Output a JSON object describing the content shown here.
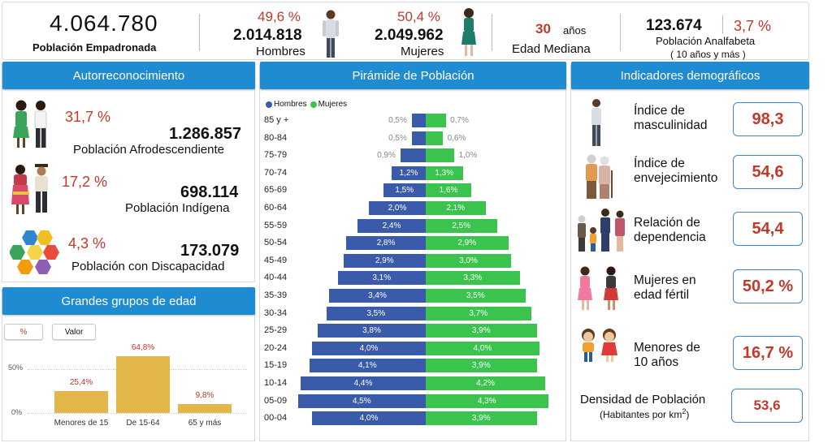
{
  "summary": {
    "total_value": "4.064.780",
    "total_label": "Población Empadronada",
    "men_pct": "49,6 %",
    "men_value": "2.014.818",
    "men_label": "Hombres",
    "women_pct": "50,4 %",
    "women_value": "2.049.962",
    "women_label": "Mujeres",
    "median_age_value": "30",
    "median_age_unit": "años",
    "median_age_label": "Edad Mediana",
    "illiterate_value": "123.674",
    "illiterate_pct": "3,7 %",
    "illiterate_label": "Población Analfabeta",
    "illiterate_sub": "( 10 años y más )"
  },
  "autorreconocimiento": {
    "title": "Autorreconocimiento",
    "items": [
      {
        "pct": "31,7 %",
        "value": "1.286.857",
        "label": "Población Afrodescendiente"
      },
      {
        "pct": "17,2 %",
        "value": "698.114",
        "label": "Población Indígena"
      },
      {
        "pct": "4,3 %",
        "value": "173.079",
        "label": "Población con Discapacidad"
      }
    ]
  },
  "age_groups": {
    "title": "Grandes grupos de edad",
    "toggle_pct": "%",
    "toggle_value": "Valor",
    "ytick_50": "50%",
    "ytick_0": "0%"
  },
  "pyramid": {
    "title": "Pirámide de Población",
    "legend_men": "Hombres",
    "legend_women": "Mujeres"
  },
  "indicators": {
    "title": "Indicadores demográficos",
    "items": [
      {
        "label_1": "Índice de",
        "label_2": "masculinidad",
        "value": "98,3"
      },
      {
        "label_1": "Índice de",
        "label_2": "envejecimiento",
        "value": "54,6"
      },
      {
        "label_1": "Relación de",
        "label_2": "dependencia",
        "value": "54,4"
      },
      {
        "label_1": "Mujeres en",
        "label_2": "edad fértil",
        "value": "50,2 %"
      },
      {
        "label_1": "Menores de",
        "label_2": "10 años",
        "value": "16,7 %"
      }
    ],
    "density_label": "Densidad de Población",
    "density_sub": "(Habitantes por km",
    "density_sup": "2",
    "density_close": ")",
    "density_value": "53,6"
  },
  "colors": {
    "men": "#3a5aaa",
    "women": "#3ac44e",
    "header": "#1f8bd1",
    "gold": "#e3b649",
    "accent_red": "#c0392b"
  },
  "chart_data": [
    {
      "type": "bar",
      "title": "Grandes grupos de edad",
      "categories": [
        "Menores de 15",
        "De 15-64",
        "65 y más"
      ],
      "values": [
        25.4,
        64.8,
        9.8
      ],
      "labels": [
        "25,4%",
        "64,8%",
        "9,8%"
      ],
      "ylim": [
        0,
        70
      ],
      "yticks": [
        "0%",
        "50%"
      ]
    },
    {
      "type": "bar",
      "title": "Pirámide de Población",
      "categories": [
        "85 y +",
        "80-84",
        "75-79",
        "70-74",
        "65-69",
        "60-64",
        "55-59",
        "50-54",
        "45-49",
        "40-44",
        "35-39",
        "30-34",
        "25-29",
        "20-24",
        "15-19",
        "10-14",
        "05-09",
        "00-04"
      ],
      "series": [
        {
          "name": "Hombres",
          "values": [
            0.5,
            0.5,
            0.9,
            1.2,
            1.5,
            2.0,
            2.4,
            2.8,
            2.9,
            3.1,
            3.4,
            3.5,
            3.8,
            4.0,
            4.1,
            4.4,
            4.5,
            4.0
          ],
          "labels": [
            "0,5%",
            "0,5%",
            "0,9%",
            "1,2%",
            "1,5%",
            "2,0%",
            "2,4%",
            "2,8%",
            "2,9%",
            "3,1%",
            "3,4%",
            "3,5%",
            "3,8%",
            "4,0%",
            "4,1%",
            "4,4%",
            "4,5%",
            "4,0%"
          ]
        },
        {
          "name": "Mujeres",
          "values": [
            0.7,
            0.6,
            1.0,
            1.3,
            1.6,
            2.1,
            2.5,
            2.9,
            3.0,
            3.3,
            3.5,
            3.7,
            3.9,
            4.0,
            3.9,
            4.2,
            4.3,
            3.9
          ],
          "labels": [
            "0,7%",
            "0,6%",
            "1,0%",
            "1,3%",
            "1,6%",
            "2,1%",
            "2,5%",
            "2,9%",
            "3,0%",
            "3,3%",
            "3,5%",
            "3,7%",
            "3,9%",
            "4,0%",
            "3,9%",
            "4,2%",
            "4,3%",
            "3,9%"
          ]
        }
      ]
    }
  ]
}
